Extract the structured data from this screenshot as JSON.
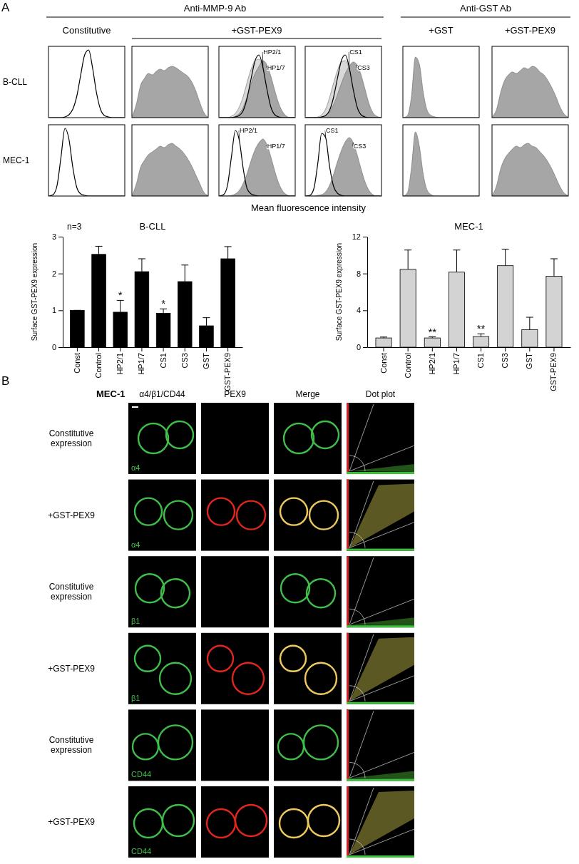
{
  "chart_data": [
    {
      "type": "area",
      "x": [
        0,
        1,
        2,
        3,
        4,
        5,
        6,
        7,
        8,
        9,
        10,
        11,
        12,
        13,
        14,
        15,
        16,
        17,
        18,
        19
      ],
      "xlim": [
        0,
        19
      ],
      "ylim": [
        0,
        100
      ],
      "tick_labels": false,
      "series": [
        {
          "type": "line",
          "color": "#000000",
          "values": [
            0,
            0,
            0,
            0,
            1,
            4,
            12,
            30,
            60,
            88,
            95,
            70,
            35,
            12,
            3,
            1,
            0,
            0,
            0,
            0
          ]
        }
      ]
    },
    {
      "type": "area",
      "x": [
        0,
        1,
        2,
        3,
        4,
        5,
        6,
        7,
        8,
        9,
        10,
        11,
        12,
        13,
        14,
        15,
        16,
        17,
        18,
        19
      ],
      "xlim": [
        0,
        19
      ],
      "ylim": [
        0,
        100
      ],
      "tick_labels": false,
      "series": [
        {
          "type": "area",
          "color": "#a6a6a6",
          "values": [
            3,
            20,
            45,
            55,
            62,
            60,
            65,
            68,
            66,
            70,
            72,
            70,
            66,
            62,
            58,
            50,
            38,
            22,
            8,
            1
          ]
        }
      ]
    },
    {
      "type": "area",
      "x": [
        0,
        1,
        2,
        3,
        4,
        5,
        6,
        7,
        8,
        9,
        10,
        11,
        12,
        13,
        14,
        15,
        16,
        17,
        18,
        19
      ],
      "xlim": [
        0,
        19
      ],
      "ylim": [
        0,
        100
      ],
      "tick_labels": false,
      "series": [
        {
          "name": "HP2/1",
          "type": "area",
          "color": "#d9d9d9",
          "values": [
            0,
            0,
            0,
            2,
            6,
            15,
            30,
            50,
            68,
            80,
            82,
            70,
            50,
            30,
            14,
            5,
            1,
            0,
            0,
            0
          ]
        },
        {
          "name": "HP1/7",
          "type": "area",
          "color": "#a6a6a6",
          "values": [
            0,
            0,
            0,
            0,
            2,
            6,
            15,
            30,
            48,
            62,
            72,
            80,
            74,
            58,
            38,
            20,
            8,
            2,
            0,
            0
          ]
        },
        {
          "type": "line",
          "color": "#000000",
          "values": [
            0,
            0,
            0,
            0,
            1,
            3,
            10,
            28,
            55,
            80,
            88,
            70,
            40,
            15,
            4,
            1,
            0,
            0,
            0,
            0
          ]
        }
      ]
    },
    {
      "type": "area",
      "x": [
        0,
        1,
        2,
        3,
        4,
        5,
        6,
        7,
        8,
        9,
        10,
        11,
        12,
        13,
        14,
        15,
        16,
        17,
        18,
        19
      ],
      "xlim": [
        0,
        19
      ],
      "ylim": [
        0,
        100
      ],
      "tick_labels": false,
      "series": [
        {
          "name": "CS1",
          "type": "area",
          "color": "#d9d9d9",
          "values": [
            0,
            0,
            0,
            1,
            4,
            12,
            28,
            48,
            66,
            78,
            80,
            68,
            48,
            28,
            12,
            4,
            1,
            0,
            0,
            0
          ]
        },
        {
          "name": "CS3",
          "type": "area",
          "color": "#a6a6a6",
          "values": [
            0,
            0,
            0,
            0,
            1,
            3,
            8,
            18,
            32,
            48,
            62,
            72,
            78,
            74,
            60,
            40,
            20,
            7,
            2,
            0
          ]
        },
        {
          "type": "line",
          "color": "#000000",
          "values": [
            0,
            0,
            0,
            0,
            1,
            3,
            10,
            28,
            55,
            80,
            88,
            70,
            40,
            15,
            4,
            1,
            0,
            0,
            0,
            0
          ]
        }
      ]
    },
    {
      "type": "area",
      "x": [
        0,
        1,
        2,
        3,
        4,
        5,
        6,
        7,
        8,
        9,
        10,
        11,
        12,
        13,
        14,
        15,
        16,
        17,
        18,
        19
      ],
      "xlim": [
        0,
        19
      ],
      "ylim": [
        0,
        100
      ],
      "tick_labels": false,
      "series": [
        {
          "type": "area",
          "color": "#a6a6a6",
          "values": [
            0,
            3,
            30,
            85,
            75,
            35,
            10,
            3,
            1,
            0,
            0,
            0,
            0,
            0,
            0,
            0,
            0,
            0,
            0,
            0
          ]
        }
      ]
    },
    {
      "type": "area",
      "x": [
        0,
        1,
        2,
        3,
        4,
        5,
        6,
        7,
        8,
        9,
        10,
        11,
        12,
        13,
        14,
        15,
        16,
        17,
        18,
        19
      ],
      "xlim": [
        0,
        19
      ],
      "ylim": [
        0,
        100
      ],
      "tick_labels": false,
      "series": [
        {
          "type": "area",
          "color": "#a6a6a6",
          "values": [
            2,
            12,
            35,
            52,
            60,
            64,
            62,
            66,
            70,
            68,
            72,
            70,
            64,
            60,
            52,
            42,
            30,
            16,
            6,
            1
          ]
        }
      ]
    },
    {
      "type": "area",
      "x": [
        0,
        1,
        2,
        3,
        4,
        5,
        6,
        7,
        8,
        9,
        10,
        11,
        12,
        13,
        14,
        15,
        16,
        17,
        18,
        19
      ],
      "xlim": [
        0,
        19
      ],
      "ylim": [
        0,
        100
      ],
      "tick_labels": false,
      "series": [
        {
          "type": "line",
          "color": "#000000",
          "values": [
            0,
            2,
            15,
            55,
            95,
            80,
            40,
            12,
            3,
            1,
            0,
            0,
            0,
            0,
            0,
            0,
            0,
            0,
            0,
            0
          ]
        }
      ]
    },
    {
      "type": "area",
      "x": [
        0,
        1,
        2,
        3,
        4,
        5,
        6,
        7,
        8,
        9,
        10,
        11,
        12,
        13,
        14,
        15,
        16,
        17,
        18,
        19
      ],
      "xlim": [
        0,
        19
      ],
      "ylim": [
        0,
        100
      ],
      "tick_labels": false,
      "series": [
        {
          "type": "area",
          "color": "#a6a6a6",
          "values": [
            2,
            18,
            40,
            50,
            58,
            62,
            66,
            70,
            68,
            72,
            74,
            70,
            66,
            60,
            52,
            42,
            30,
            18,
            6,
            1
          ]
        }
      ]
    },
    {
      "type": "area",
      "x": [
        0,
        1,
        2,
        3,
        4,
        5,
        6,
        7,
        8,
        9,
        10,
        11,
        12,
        13,
        14,
        15,
        16,
        17,
        18,
        19
      ],
      "xlim": [
        0,
        19
      ],
      "ylim": [
        0,
        100
      ],
      "tick_labels": false,
      "series": [
        {
          "name": "HP2/1",
          "type": "line",
          "color": "#000000",
          "values": [
            0,
            2,
            15,
            55,
            92,
            78,
            38,
            10,
            3,
            1,
            0,
            0,
            0,
            0,
            0,
            0,
            0,
            0,
            0,
            0
          ]
        },
        {
          "name": "HP1/7",
          "type": "area",
          "color": "#a6a6a6",
          "values": [
            0,
            0,
            0,
            1,
            3,
            8,
            18,
            32,
            50,
            65,
            75,
            80,
            72,
            55,
            35,
            18,
            7,
            2,
            0,
            0
          ]
        }
      ]
    },
    {
      "type": "area",
      "x": [
        0,
        1,
        2,
        3,
        4,
        5,
        6,
        7,
        8,
        9,
        10,
        11,
        12,
        13,
        14,
        15,
        16,
        17,
        18,
        19
      ],
      "xlim": [
        0,
        19
      ],
      "ylim": [
        0,
        100
      ],
      "tick_labels": false,
      "series": [
        {
          "name": "CS1",
          "type": "line",
          "color": "#000000",
          "values": [
            0,
            1,
            10,
            45,
            88,
            82,
            42,
            14,
            4,
            1,
            0,
            0,
            0,
            0,
            0,
            0,
            0,
            0,
            0,
            0
          ]
        },
        {
          "name": "CS3",
          "type": "area",
          "color": "#a6a6a6",
          "values": [
            0,
            0,
            0,
            1,
            2,
            6,
            15,
            30,
            48,
            64,
            76,
            82,
            75,
            58,
            38,
            20,
            8,
            2,
            0,
            0
          ]
        }
      ]
    },
    {
      "type": "area",
      "x": [
        0,
        1,
        2,
        3,
        4,
        5,
        6,
        7,
        8,
        9,
        10,
        11,
        12,
        13,
        14,
        15,
        16,
        17,
        18,
        19
      ],
      "xlim": [
        0,
        19
      ],
      "ylim": [
        0,
        100
      ],
      "tick_labels": false,
      "series": [
        {
          "type": "area",
          "color": "#a6a6a6",
          "values": [
            0,
            5,
            40,
            90,
            70,
            30,
            8,
            2,
            0,
            0,
            0,
            0,
            0,
            0,
            0,
            0,
            0,
            0,
            0,
            0
          ]
        }
      ]
    },
    {
      "type": "area",
      "x": [
        0,
        1,
        2,
        3,
        4,
        5,
        6,
        7,
        8,
        9,
        10,
        11,
        12,
        13,
        14,
        15,
        16,
        17,
        18,
        19
      ],
      "xlim": [
        0,
        19
      ],
      "ylim": [
        0,
        100
      ],
      "tick_labels": false,
      "series": [
        {
          "type": "area",
          "color": "#a6a6a6",
          "values": [
            2,
            15,
            38,
            52,
            60,
            66,
            70,
            68,
            72,
            74,
            70,
            68,
            62,
            56,
            48,
            38,
            26,
            14,
            5,
            1
          ]
        }
      ]
    },
    {
      "type": "bar",
      "title": "B-CLL",
      "ylabel": "Surface GST-PEX9 expression",
      "categories": [
        "Const",
        "Control",
        "HP2/1",
        "HP1/7",
        "CS1",
        "CS3",
        "GST",
        "GST-PEX9"
      ],
      "values": [
        1,
        2.52,
        0.95,
        2.05,
        0.92,
        1.78,
        0.58,
        2.4
      ],
      "errors": [
        0,
        0.22,
        0.32,
        0.35,
        0.12,
        0.45,
        0.22,
        0.33
      ],
      "color": "#000000",
      "ylim": [
        0,
        3
      ],
      "yticks": [
        0,
        1,
        2,
        3
      ],
      "annotations": [
        {
          "text": "n=3"
        },
        {
          "text": "*",
          "category": "HP2/1"
        },
        {
          "text": "*",
          "category": "CS1"
        }
      ]
    },
    {
      "type": "bar",
      "title": "MEC-1",
      "ylabel": "Surface GST-PEX9 expression",
      "categories": [
        "Const",
        "Control",
        "HP2/1",
        "HP1/7",
        "CS1",
        "CS3",
        "GST",
        "GST-PEX9"
      ],
      "values": [
        1,
        8.45,
        1.0,
        8.15,
        1.15,
        8.85,
        1.9,
        7.7
      ],
      "errors": [
        0.1,
        2.1,
        0.12,
        2.4,
        0.3,
        1.8,
        1.35,
        1.9
      ],
      "color": "#d3d3d3",
      "ylim": [
        0,
        12
      ],
      "yticks": [
        0,
        4,
        8,
        12
      ],
      "annotations": [
        {
          "text": "**",
          "category": "HP2/1"
        },
        {
          "text": "**",
          "category": "CS1"
        }
      ]
    }
  ],
  "panel_a": {
    "label": "A",
    "groups": [
      {
        "text": "Anti-MMP-9 Ab",
        "span": [
          0,
          3
        ]
      },
      {
        "text": "Anti-GST Ab",
        "span": [
          4,
          5
        ]
      }
    ],
    "column_headers": [
      {
        "text": "Constitutive",
        "span": [
          0,
          0
        ]
      },
      {
        "text": "+GST-PEX9",
        "span": [
          1,
          3
        ]
      },
      {
        "text": "+GST",
        "span": [
          4,
          4
        ]
      },
      {
        "text": "+GST-PEX9",
        "span": [
          5,
          5
        ]
      }
    ],
    "rows": [
      "B-CLL",
      "MEC-1"
    ],
    "x_label": "Mean fluorescence intensity"
  },
  "panel_b": {
    "label": "B",
    "cell_line": "MEC-1",
    "columns": [
      "α4/β1/CD44",
      "PEX9",
      "Merge",
      "Dot plot"
    ],
    "rows": [
      {
        "label": [
          "Constitutive",
          "expression"
        ],
        "marker": "α4",
        "gst_pex9": false
      },
      {
        "label": [
          "+GST-PEX9"
        ],
        "marker": "α4",
        "gst_pex9": true
      },
      {
        "label": [
          "Constitutive",
          "expression"
        ],
        "marker": "β1",
        "gst_pex9": false
      },
      {
        "label": [
          "+GST-PEX9"
        ],
        "marker": "β1",
        "gst_pex9": true
      },
      {
        "label": [
          "Constitutive",
          "expression"
        ],
        "marker": "CD44",
        "gst_pex9": false
      },
      {
        "label": [
          "+GST-PEX9"
        ],
        "marker": "CD44",
        "gst_pex9": true
      }
    ]
  }
}
